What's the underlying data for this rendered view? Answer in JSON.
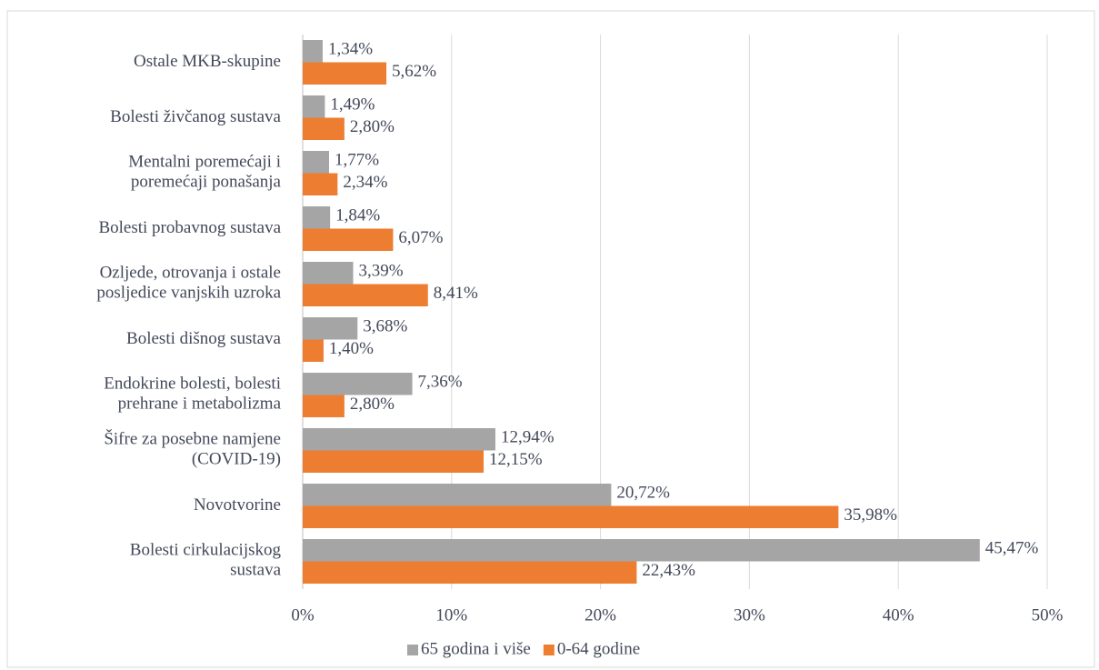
{
  "chart_data": {
    "type": "bar",
    "orientation": "horizontal",
    "categories": [
      "Ostale MKB-skupine",
      "Bolesti živčanog sustava",
      "Mentalni poremećaji i\nporemećaji ponašanja",
      "Bolesti probavnog sustava",
      "Ozljede, otrovanja i ostale\nposljedice vanjskih uzroka",
      "Bolesti dišnog sustava",
      "Endokrine bolesti, bolesti\nprehrane i metabolizma",
      "Šifre za posebne namjene\n(COVID-19)",
      "Novotvorine",
      "Bolesti cirkulacijskog\nsustava"
    ],
    "series": [
      {
        "name": "65 godina i više",
        "color": "#a5a5a5",
        "values": [
          1.34,
          1.49,
          1.77,
          1.84,
          3.39,
          3.68,
          7.36,
          12.94,
          20.72,
          45.47
        ],
        "value_labels": [
          "1,34%",
          "1,49%",
          "1,77%",
          "1,84%",
          "3,39%",
          "3,68%",
          "7,36%",
          "12,94%",
          "20,72%",
          "45,47%"
        ]
      },
      {
        "name": "0-64 godine",
        "color": "#ed7d31",
        "values": [
          5.62,
          2.8,
          2.34,
          6.07,
          8.41,
          1.4,
          2.8,
          12.15,
          35.98,
          22.43
        ],
        "value_labels": [
          "5,62%",
          "2,80%",
          "2,34%",
          "6,07%",
          "8,41%",
          "1,40%",
          "2,80%",
          "12,15%",
          "35,98%",
          "22,43%"
        ]
      }
    ],
    "xlim": [
      0,
      50
    ],
    "xticks": [
      {
        "value": 0,
        "label": "0%"
      },
      {
        "value": 10,
        "label": "10%"
      },
      {
        "value": 20,
        "label": "20%"
      },
      {
        "value": 30,
        "label": "30%"
      },
      {
        "value": 40,
        "label": "40%"
      },
      {
        "value": 50,
        "label": "50%"
      }
    ],
    "grid": true,
    "legend": "bottom"
  }
}
